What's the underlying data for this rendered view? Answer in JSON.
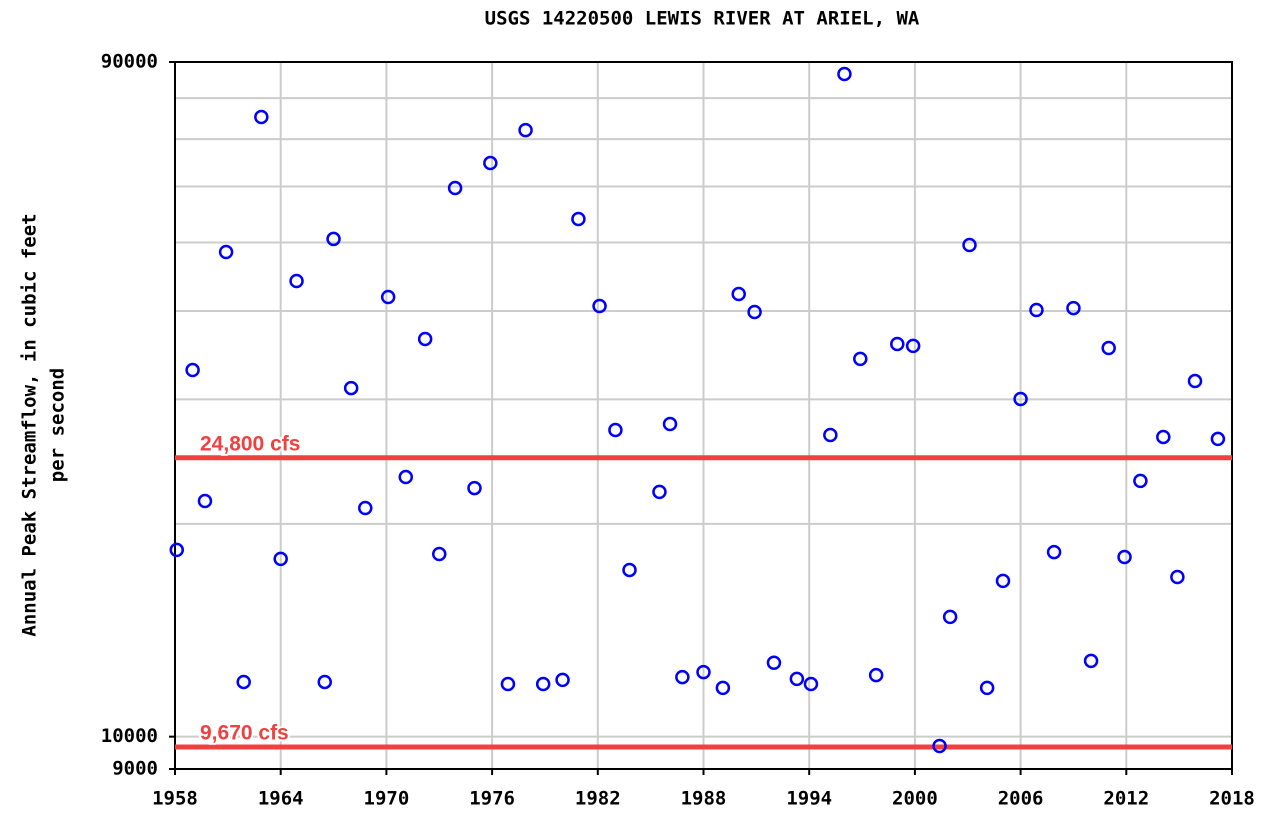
{
  "chart_data": {
    "type": "scatter",
    "title": "USGS 14220500 LEWIS RIVER AT ARIEL, WA",
    "y_label": [
      "Annual Peak Streamflow, in cubic feet",
      "per second"
    ],
    "x": [
      1958.1,
      1959.0,
      1959.7,
      1960.9,
      1961.9,
      1962.9,
      1964.0,
      1964.9,
      1966.5,
      1967.0,
      1968.0,
      1968.8,
      1970.1,
      1971.1,
      1972.2,
      1973.0,
      1973.9,
      1975.0,
      1975.9,
      1976.9,
      1977.9,
      1978.9,
      1980.0,
      1980.9,
      1982.1,
      1983.0,
      1983.8,
      1985.5,
      1986.1,
      1986.8,
      1988.0,
      1989.1,
      1990.0,
      1990.9,
      1992.0,
      1993.3,
      1994.1,
      1995.2,
      1996.0,
      1996.9,
      1997.8,
      1999.0,
      1999.9,
      2001.4,
      2002.0,
      2003.1,
      2004.1,
      2005.0,
      2006.0,
      2006.9,
      2007.9,
      2009.0,
      2010.0,
      2011.0,
      2011.9,
      2012.8,
      2014.1,
      2014.9,
      2015.9,
      2017.2
    ],
    "values": [
      18370,
      33000,
      21540,
      48470,
      11950,
      75240,
      17840,
      44100,
      11950,
      50580,
      31120,
      21060,
      41870,
      23290,
      36520,
      18130,
      59700,
      22470,
      64760,
      11870,
      72100,
      11870,
      12030,
      53980,
      40660,
      27150,
      17210,
      22190,
      27680,
      12140,
      12340,
      11720,
      42280,
      39870,
      12720,
      12070,
      11870,
      26710,
      86550,
      34220,
      12220,
      35920,
      35700,
      9700,
      14770,
      49590,
      11720,
      16610,
      30030,
      40130,
      18240,
      40380,
      12800,
      35460,
      17950,
      23000,
      26540,
      16820,
      31840,
      26370
    ],
    "color": "#0000ff",
    "xlim": [
      1958,
      2018
    ],
    "xticks": [
      1958,
      1964,
      1970,
      1976,
      1982,
      1988,
      1994,
      2000,
      2006,
      2012,
      2018
    ],
    "ylim": [
      9000,
      90000
    ],
    "yticks": [
      9000,
      10000,
      90000
    ],
    "y_gridlines": [
      20000,
      30000,
      40000,
      50000,
      60000,
      70000,
      80000
    ],
    "log_scale_y": true,
    "grid": true,
    "reference_lines": [
      {
        "value": 24800,
        "label": "24,800 cfs",
        "color": "#f04040"
      },
      {
        "value": 9670,
        "label": "9,670 cfs",
        "color": "#f04040"
      }
    ]
  }
}
